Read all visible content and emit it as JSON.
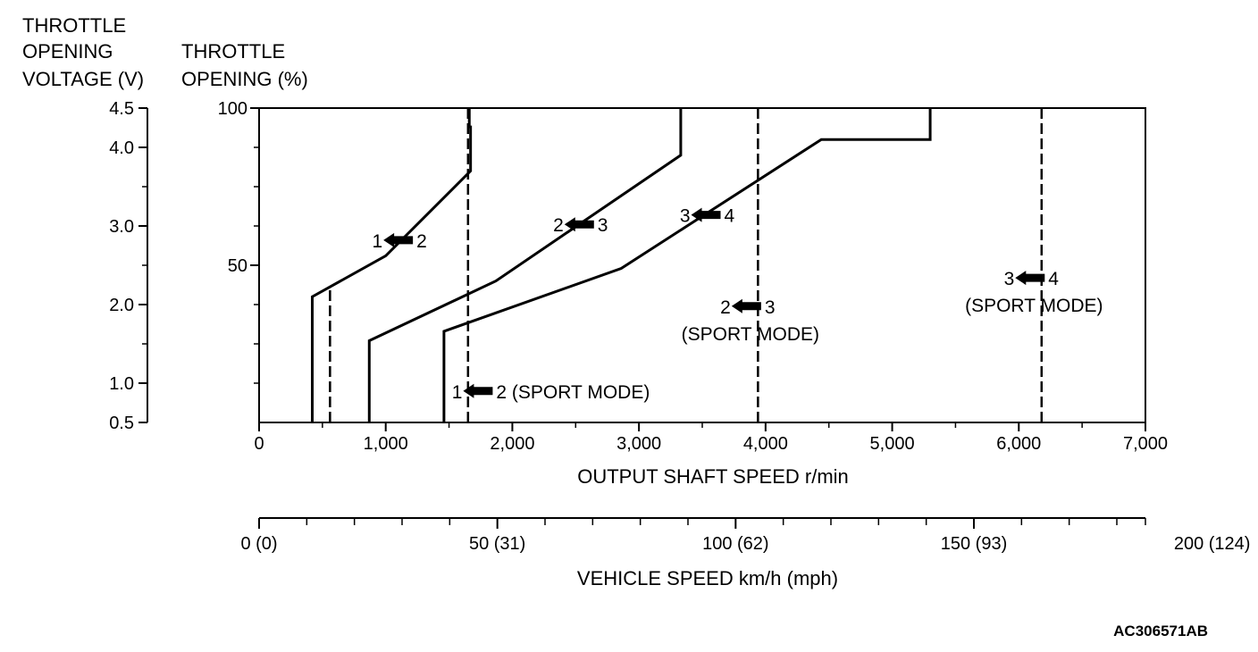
{
  "header": {
    "voltage_title": [
      "THROTTLE",
      "OPENING",
      "VOLTAGE (V)"
    ],
    "opening_title": [
      "THROTTLE",
      "OPENING (%)"
    ]
  },
  "figure_code": "AC306571AB",
  "chart_data": {
    "type": "line",
    "title": "",
    "xlabel": "OUTPUT SHAFT SPEED r/min",
    "x2label": "VEHICLE SPEED km/h (mph)",
    "ylabel": "THROTTLE OPENING (%)",
    "y2label": "THROTTLE OPENING VOLTAGE (V)",
    "xlim": [
      0,
      7000
    ],
    "ylim": [
      0,
      100
    ],
    "grid": false,
    "x_ticks": [
      0,
      1000,
      2000,
      3000,
      4000,
      5000,
      6000,
      7000
    ],
    "x_tick_labels": [
      "0",
      "1,000",
      "2,000",
      "3,000",
      "4,000",
      "5,000",
      "6,000",
      "7,000"
    ],
    "y_ticks": [
      50,
      100
    ],
    "y_tick_labels": [
      "50",
      "100"
    ],
    "voltage_ticks": [
      {
        "v": 0.5,
        "label": "0.5"
      },
      {
        "v": 1.0,
        "label": "1.0"
      },
      {
        "v": 2.0,
        "label": "2.0"
      },
      {
        "v": 3.0,
        "label": "3.0"
      },
      {
        "v": 4.0,
        "label": "4.0"
      },
      {
        "v": 4.5,
        "label": "4.5"
      }
    ],
    "voltage_range": [
      0.5,
      4.5
    ],
    "vehicle_speed_ticks": [
      {
        "kmh": 0,
        "label": "0 (0)"
      },
      {
        "kmh": 50,
        "label": "50 (31)"
      },
      {
        "kmh": 100,
        "label": "100 (62)"
      },
      {
        "kmh": 150,
        "label": "150 (93)"
      },
      {
        "kmh": 200,
        "label": "200 (124)"
      }
    ],
    "vehicle_speed_range": [
      0,
      186
    ],
    "series": [
      {
        "style": "solid",
        "x": [
          420,
          420,
          1000,
          1670,
          1670,
          1660,
          1660
        ],
        "y": [
          0,
          40,
          53,
          80,
          94,
          94,
          100
        ]
      },
      {
        "style": "solid",
        "x": [
          870,
          870,
          1870,
          3330,
          3330
        ],
        "y": [
          0,
          26,
          45,
          85,
          100
        ]
      },
      {
        "style": "solid",
        "x": [
          1460,
          1460,
          2860,
          4440,
          5300,
          5300
        ],
        "y": [
          0,
          29,
          49,
          90,
          90,
          100
        ]
      },
      {
        "style": "dashed",
        "x": [
          560,
          560
        ],
        "y": [
          0,
          43
        ]
      },
      {
        "style": "dashed",
        "x": [
          1650,
          1650
        ],
        "y": [
          0,
          100
        ]
      },
      {
        "style": "dashed",
        "x": [
          3940,
          3940
        ],
        "y": [
          0,
          100
        ]
      },
      {
        "style": "dashed",
        "x": [
          6180,
          6180
        ],
        "y": [
          0,
          100
        ]
      }
    ],
    "annotations": [
      {
        "from": "1",
        "to": "2",
        "mode": "",
        "x": 1130,
        "y": 58
      },
      {
        "from": "2",
        "to": "3",
        "mode": "",
        "x": 2560,
        "y": 63
      },
      {
        "from": "3",
        "to": "4",
        "mode": "",
        "x": 3560,
        "y": 66
      },
      {
        "from": "1",
        "to": "2",
        "mode": "(SPORT MODE)",
        "x": 1760,
        "y": 10
      },
      {
        "from": "2",
        "to": "3",
        "mode": "(SPORT MODE)",
        "x": 3880,
        "y": 37
      },
      {
        "from": "3",
        "to": "4",
        "mode": "(SPORT MODE)",
        "x": 6120,
        "y": 46
      }
    ]
  }
}
